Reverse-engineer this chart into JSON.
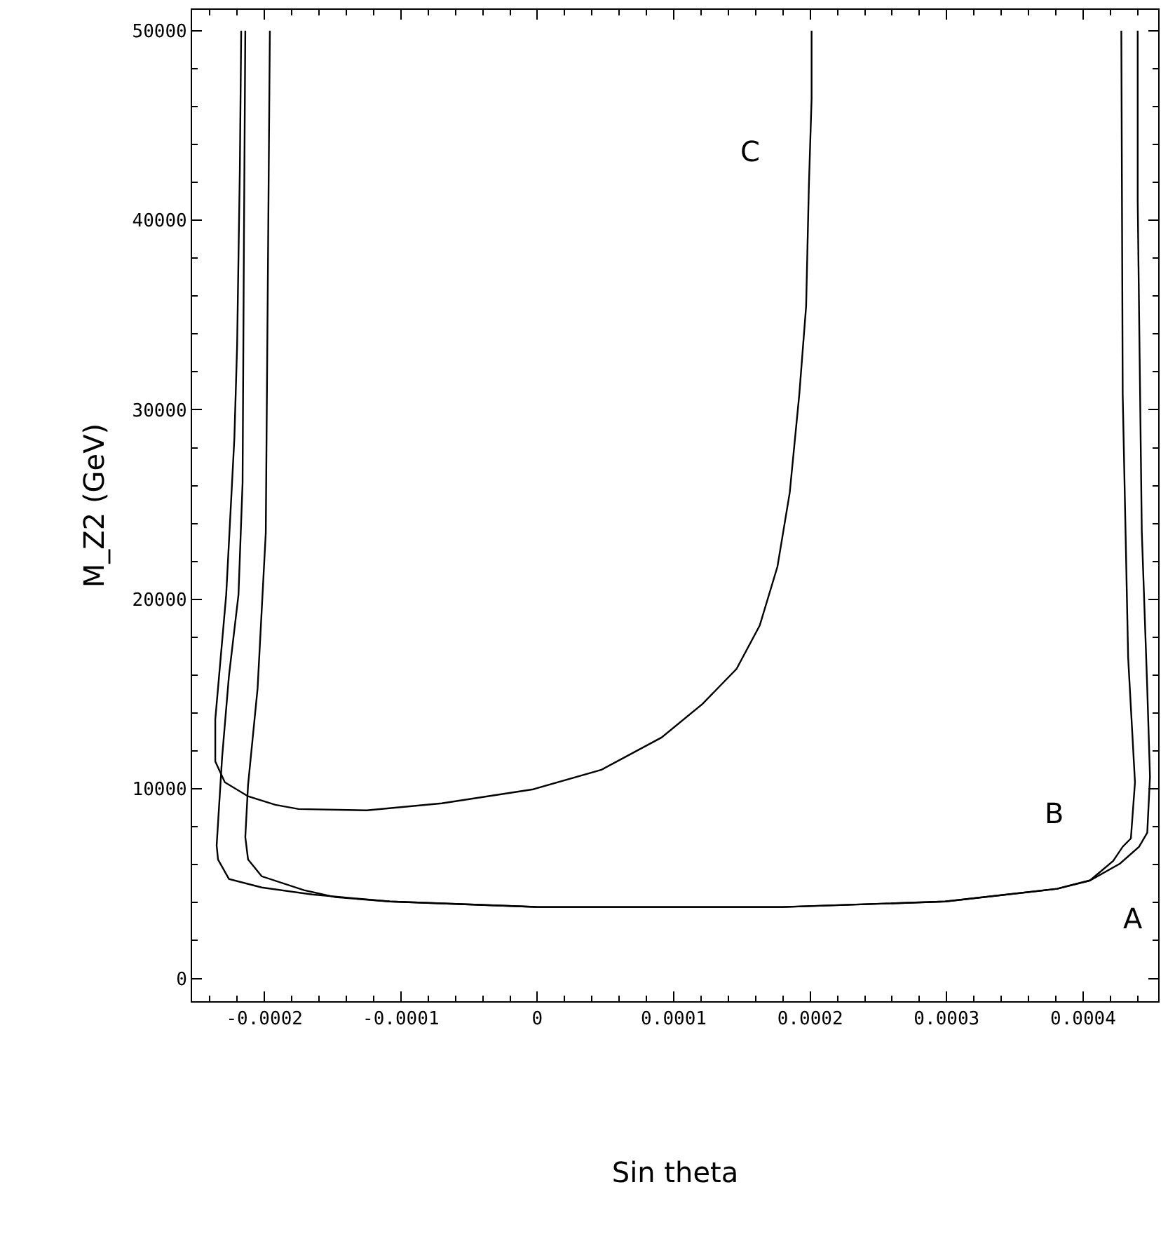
{
  "chart_data": {
    "type": "line",
    "xlabel": "Sin theta",
    "ylabel": "M_Z2 (GeV)",
    "xlim": [
      -0.000253,
      0.000455
    ],
    "ylim": [
      -1200,
      51100
    ],
    "xticks": [
      -0.0002,
      -0.0001,
      0,
      0.0001,
      0.0002,
      0.0003,
      0.0004
    ],
    "yticks": [
      0,
      10000,
      20000,
      30000,
      40000,
      50000
    ],
    "marker": "none",
    "line_style": "solid",
    "series": [
      {
        "color": "#000000",
        "x": [
          -0.000214,
          -0.000215,
          -0.000216,
          -0.000219,
          -0.000226,
          -0.000231,
          -0.000235,
          -0.000234,
          -0.000226,
          -0.000202,
          -0.000165,
          -0.000108,
          0,
          0.00018,
          0.000299,
          0.000381,
          0.000405,
          0.000427,
          0.000441,
          0.000447,
          0.000449,
          0.000447,
          0.000443,
          0.00044,
          0.00044
        ],
        "values": [
          50000,
          39020,
          26160,
          20250,
          15960,
          11670,
          7020,
          6280,
          5250,
          4800,
          4430,
          4060,
          3770,
          3770,
          4060,
          4730,
          5170,
          6060,
          6950,
          7690,
          10640,
          15300,
          23580,
          41010,
          50000
        ]
      },
      {
        "color": "#000000",
        "x": [
          -0.000196,
          -0.000199,
          -0.000205,
          -0.000212,
          -0.000214,
          -0.000212,
          -0.000202,
          -0.000171,
          -0.000148,
          -0.000108,
          0,
          0.00018,
          0.000299,
          0.000381,
          0.000405,
          0.000422,
          0.000429,
          0.000435,
          0.000438,
          0.000433,
          0.000429,
          0.000428
        ],
        "values": [
          50000,
          23500,
          15300,
          10200,
          7460,
          6280,
          5390,
          4660,
          4290,
          4060,
          3770,
          3770,
          4060,
          4730,
          5170,
          6200,
          6950,
          7390,
          10350,
          16920,
          30820,
          50000
        ]
      },
      {
        "color": "#000000",
        "x": [
          0.000201,
          0.000201,
          0.000199,
          0.000197,
          0.000192,
          0.000185,
          0.000176,
          0.000163,
          0.000146,
          0.000121,
          9.1e-05,
          4.7e-05,
          -3e-06,
          -7e-05,
          -0.000125,
          -0.000175,
          -0.000192,
          -0.000212,
          -0.000229,
          -0.000236,
          -0.000236,
          -0.000228,
          -0.000222,
          -0.00022,
          -0.000218,
          -0.000217
        ],
        "values": [
          50000,
          46400,
          41750,
          35470,
          30820,
          25640,
          21730,
          18620,
          16330,
          14480,
          12710,
          11010,
          9980,
          9240,
          8870,
          8940,
          9160,
          9610,
          10350,
          11450,
          13670,
          20250,
          28530,
          33400,
          42710,
          50000
        ]
      }
    ],
    "annotations": [
      "A",
      "B",
      "C"
    ]
  }
}
